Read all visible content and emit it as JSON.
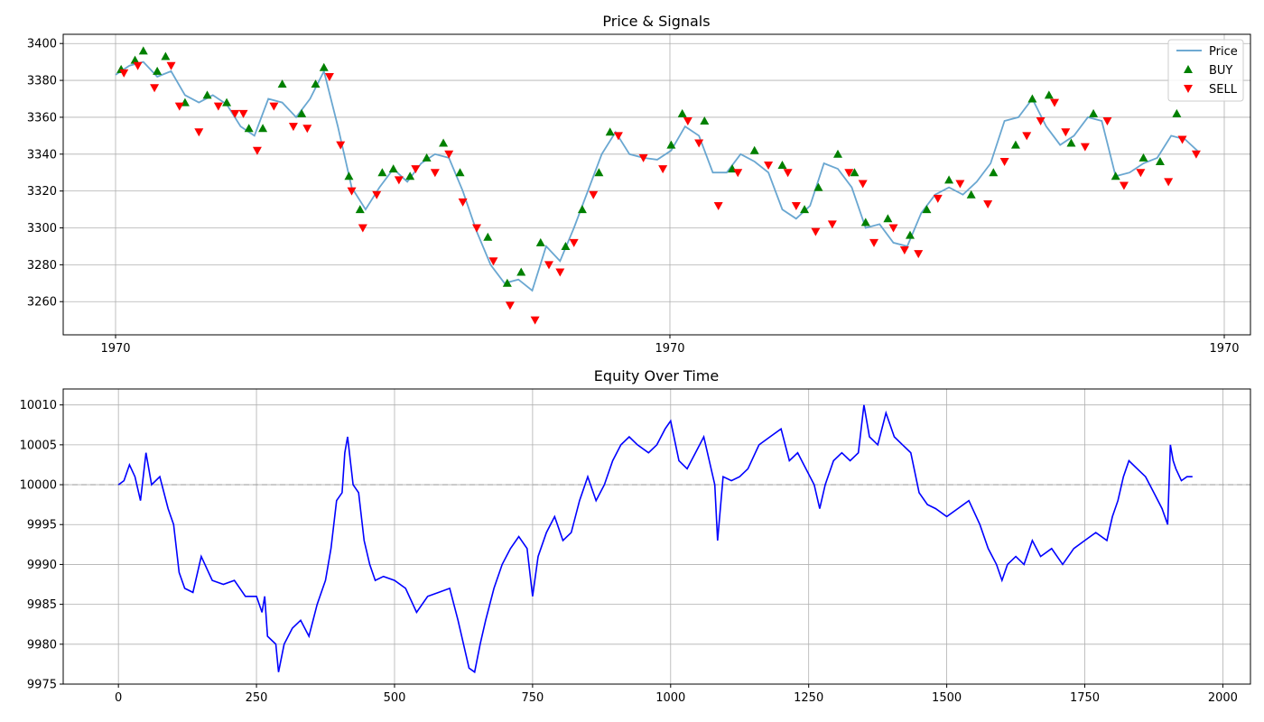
{
  "chart_data": [
    {
      "type": "line",
      "title": "Price & Signals",
      "xlabel": "",
      "ylabel": "",
      "ylim": [
        3242,
        3405
      ],
      "x_tick_labels": [
        "1970",
        "1970",
        "1970"
      ],
      "y_ticks": [
        3260,
        3280,
        3300,
        3320,
        3340,
        3360,
        3380,
        3400
      ],
      "grid": true,
      "legend_position": "top-right",
      "legend": [
        {
          "label": "Price",
          "kind": "line",
          "color": "#5a9dcc"
        },
        {
          "label": "BUY",
          "kind": "triangle-up",
          "color": "#008000"
        },
        {
          "label": "SELL",
          "kind": "triangle-down",
          "color": "#ff0000"
        }
      ],
      "series": [
        {
          "name": "Price",
          "color": "#5a9dcc",
          "x": [
            0,
            25,
            50,
            75,
            100,
            125,
            150,
            175,
            200,
            225,
            250,
            275,
            300,
            325,
            350,
            375,
            400,
            425,
            450,
            475,
            500,
            525,
            550,
            575,
            600,
            625,
            650,
            675,
            700,
            725,
            750,
            775,
            800,
            825,
            850,
            875,
            900,
            925,
            950,
            975,
            1000,
            1025,
            1050,
            1075,
            1100,
            1125,
            1150,
            1175,
            1200,
            1225,
            1250,
            1275,
            1300,
            1325,
            1350,
            1375,
            1400,
            1425,
            1450,
            1475,
            1500,
            1525,
            1550,
            1575,
            1600,
            1625,
            1650,
            1675,
            1700,
            1725,
            1750,
            1775,
            1800,
            1825,
            1850,
            1875,
            1900,
            1925,
            1950
          ],
          "values": [
            3383,
            3388,
            3390,
            3382,
            3385,
            3372,
            3368,
            3372,
            3367,
            3355,
            3350,
            3370,
            3368,
            3360,
            3370,
            3385,
            3355,
            3322,
            3310,
            3322,
            3332,
            3325,
            3335,
            3340,
            3338,
            3320,
            3298,
            3280,
            3270,
            3272,
            3266,
            3290,
            3282,
            3300,
            3320,
            3340,
            3352,
            3340,
            3338,
            3337,
            3342,
            3355,
            3350,
            3330,
            3330,
            3340,
            3336,
            3330,
            3310,
            3305,
            3312,
            3335,
            3332,
            3322,
            3300,
            3302,
            3292,
            3290,
            3308,
            3318,
            3322,
            3318,
            3325,
            3335,
            3358,
            3360,
            3370,
            3355,
            3345,
            3350,
            3360,
            3358,
            3328,
            3330,
            3335,
            3338,
            3350,
            3348,
            3341
          ]
        }
      ],
      "buy_signals": {
        "x": [
          10,
          35,
          50,
          75,
          90,
          125,
          165,
          200,
          240,
          265,
          300,
          335,
          360,
          375,
          420,
          440,
          480,
          500,
          530,
          560,
          590,
          620,
          670,
          705,
          730,
          765,
          810,
          840,
          870,
          890,
          1000,
          1020,
          1060,
          1110,
          1150,
          1200,
          1240,
          1265,
          1300,
          1330,
          1350,
          1390,
          1430,
          1460,
          1500,
          1540,
          1580,
          1620,
          1650,
          1680,
          1720,
          1760,
          1800,
          1850,
          1880,
          1910
        ],
        "values": [
          3386,
          3391,
          3396,
          3385,
          3393,
          3368,
          3372,
          3368,
          3354,
          3354,
          3378,
          3362,
          3378,
          3387,
          3328,
          3310,
          3330,
          3332,
          3328,
          3338,
          3346,
          3330,
          3295,
          3270,
          3276,
          3292,
          3290,
          3310,
          3330,
          3352,
          3345,
          3362,
          3358,
          3332,
          3342,
          3334,
          3310,
          3322,
          3340,
          3330,
          3303,
          3305,
          3296,
          3310,
          3326,
          3318,
          3330,
          3345,
          3370,
          3372,
          3346,
          3362,
          3328,
          3338,
          3336,
          3362
        ]
      },
      "sell_signals": {
        "x": [
          15,
          40,
          70,
          100,
          115,
          150,
          185,
          215,
          230,
          255,
          285,
          320,
          345,
          385,
          405,
          425,
          445,
          470,
          510,
          540,
          575,
          600,
          625,
          650,
          680,
          710,
          755,
          780,
          800,
          825,
          860,
          905,
          950,
          985,
          1030,
          1050,
          1085,
          1120,
          1175,
          1210,
          1225,
          1260,
          1290,
          1320,
          1345,
          1365,
          1400,
          1420,
          1445,
          1480,
          1520,
          1570,
          1600,
          1640,
          1665,
          1690,
          1710,
          1745,
          1785,
          1815,
          1845,
          1895,
          1920,
          1945
        ],
        "values": [
          3384,
          3388,
          3376,
          3388,
          3366,
          3352,
          3366,
          3362,
          3362,
          3342,
          3366,
          3355,
          3354,
          3382,
          3345,
          3320,
          3300,
          3318,
          3326,
          3332,
          3330,
          3340,
          3314,
          3300,
          3282,
          3258,
          3250,
          3280,
          3276,
          3292,
          3318,
          3350,
          3338,
          3332,
          3358,
          3346,
          3312,
          3330,
          3334,
          3330,
          3312,
          3298,
          3302,
          3330,
          3324,
          3292,
          3300,
          3288,
          3286,
          3316,
          3324,
          3313,
          3336,
          3350,
          3358,
          3368,
          3352,
          3344,
          3358,
          3323,
          3330,
          3325,
          3348,
          3340
        ]
      }
    },
    {
      "type": "line",
      "title": "Equity Over Time",
      "xlabel": "",
      "ylabel": "",
      "xlim": [
        -100,
        2050
      ],
      "ylim": [
        9975,
        10012
      ],
      "x_ticks": [
        0,
        250,
        500,
        750,
        1000,
        1250,
        1500,
        1750,
        2000
      ],
      "y_ticks": [
        9975,
        9980,
        9985,
        9990,
        9995,
        10000,
        10005,
        10010
      ],
      "grid": true,
      "reference_line": {
        "y": 10000,
        "style": "dashed",
        "color": "#a0a0a0"
      },
      "series": [
        {
          "name": "Equity",
          "color": "#0000ff",
          "x": [
            0,
            10,
            20,
            30,
            40,
            50,
            60,
            75,
            90,
            100,
            110,
            120,
            135,
            150,
            170,
            190,
            210,
            230,
            250,
            260,
            265,
            270,
            285,
            290,
            300,
            315,
            330,
            345,
            360,
            375,
            385,
            395,
            405,
            410,
            415,
            425,
            435,
            445,
            455,
            465,
            480,
            500,
            520,
            540,
            560,
            580,
            600,
            615,
            625,
            635,
            645,
            655,
            665,
            680,
            695,
            710,
            725,
            740,
            750,
            760,
            775,
            790,
            805,
            820,
            835,
            850,
            865,
            880,
            895,
            910,
            925,
            940,
            960,
            975,
            990,
            1000,
            1015,
            1030,
            1045,
            1060,
            1070,
            1080,
            1085,
            1095,
            1110,
            1125,
            1140,
            1160,
            1180,
            1200,
            1215,
            1230,
            1245,
            1260,
            1270,
            1280,
            1295,
            1310,
            1325,
            1340,
            1350,
            1360,
            1375,
            1390,
            1405,
            1420,
            1435,
            1450,
            1465,
            1480,
            1500,
            1520,
            1540,
            1560,
            1575,
            1590,
            1600,
            1610,
            1625,
            1640,
            1655,
            1670,
            1690,
            1710,
            1730,
            1750,
            1770,
            1790,
            1800,
            1810,
            1820,
            1830,
            1845,
            1860,
            1875,
            1890,
            1900,
            1905,
            1910,
            1915,
            1925,
            1935,
            1945
          ],
          "values": [
            10000,
            10000.5,
            10002.5,
            10001,
            9998,
            10004,
            10000,
            10001,
            9997,
            9995,
            9989,
            9987,
            9986.5,
            9991,
            9988,
            9987.5,
            9988,
            9986,
            9986,
            9984,
            9986,
            9981,
            9980,
            9976.5,
            9980,
            9982,
            9983,
            9981,
            9985,
            9988,
            9992,
            9998,
            9999,
            10004,
            10006,
            10000,
            9999,
            9993,
            9990,
            9988,
            9988.5,
            9988,
            9987,
            9984,
            9986,
            9986.5,
            9987,
            9983,
            9980,
            9977,
            9976.5,
            9980,
            9983,
            9987,
            9990,
            9992,
            9993.5,
            9992,
            9986,
            9991,
            9994,
            9996,
            9993,
            9994,
            9998,
            10001,
            9998,
            10000,
            10003,
            10005,
            10006,
            10005,
            10004,
            10005,
            10007,
            10008,
            10003,
            10002,
            10004,
            10006,
            10003,
            10000,
            9993,
            10001,
            10000.5,
            10001,
            10002,
            10005,
            10006,
            10007,
            10003,
            10004,
            10002,
            10000,
            9997,
            10000,
            10003,
            10004,
            10003,
            10004,
            10010,
            10006,
            10005,
            10009,
            10006,
            10005,
            10004,
            9999,
            9997.5,
            9997,
            9996,
            9997,
            9998,
            9995,
            9992,
            9990,
            9988,
            9990,
            9991,
            9990,
            9993,
            9991,
            9992,
            9990,
            9992,
            9993,
            9994,
            9993,
            9996,
            9998,
            10001,
            10003,
            10002,
            10001,
            9999,
            9997,
            9995,
            10005,
            10003,
            10002,
            10000.5,
            10001,
            10001
          ]
        }
      ]
    }
  ]
}
